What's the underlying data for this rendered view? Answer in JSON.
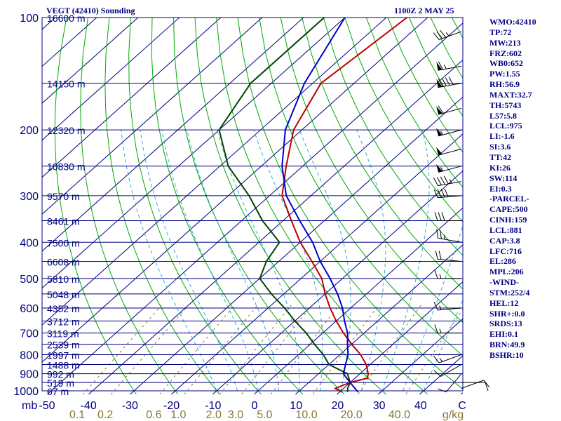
{
  "header": {
    "left_title": "VEGT (42410) Sounding",
    "right_title": "1100Z  2 MAY 25"
  },
  "colors": {
    "isobar": "#000080",
    "isotherm": "#000080",
    "dry_adiabat": "#00aa00",
    "moist_adiabat": "#33aadd",
    "mixing_ratio": "#887733",
    "temperature": "#bb0000",
    "dewpoint": "#004400",
    "parcel": "#0000cc",
    "wind": "#000000",
    "mixing_label": "#887733",
    "index_text": "#000080"
  },
  "chart_data": {
    "type": "skew-t",
    "xlabel_unit_left": "mb",
    "xlabel_unit_right": "g/kg",
    "temperature_ticks": [
      "-50",
      "-40",
      "-30",
      "-20",
      "-10",
      "0",
      "10",
      "20",
      "30",
      "40",
      "C"
    ],
    "pressure_levels": [
      {
        "p": 100,
        "label": "100",
        "height": "16600 m"
      },
      {
        "p": 150,
        "label": "",
        "height": "14150 m"
      },
      {
        "p": 200,
        "label": "200",
        "height": "12320 m"
      },
      {
        "p": 250,
        "label": "",
        "height": "10830 m"
      },
      {
        "p": 300,
        "label": "300",
        "height": "9570 m"
      },
      {
        "p": 350,
        "label": "",
        "height": "8461 m"
      },
      {
        "p": 400,
        "label": "400",
        "height": "7500 m"
      },
      {
        "p": 450,
        "label": "",
        "height": "6608 m"
      },
      {
        "p": 500,
        "label": "500",
        "height": "5810 m"
      },
      {
        "p": 550,
        "label": "",
        "height": "5048 m"
      },
      {
        "p": 600,
        "label": "600",
        "height": "4352 m"
      },
      {
        "p": 650,
        "label": "",
        "height": "3712 m"
      },
      {
        "p": 700,
        "label": "700",
        "height": "3119 m"
      },
      {
        "p": 750,
        "label": "",
        "height": "2539 m"
      },
      {
        "p": 800,
        "label": "800",
        "height": "1997 m"
      },
      {
        "p": 850,
        "label": "",
        "height": "1488 m"
      },
      {
        "p": 900,
        "label": "900",
        "height": "992 m"
      },
      {
        "p": 950,
        "label": "",
        "height": "519 m"
      },
      {
        "p": 1000,
        "label": "1000",
        "height": "67 m"
      }
    ],
    "mixing_ratio_labels": [
      "0.1",
      "0.2",
      "0.6",
      "1.0",
      "2.0",
      "3.0",
      "5.0",
      "10.0",
      "20.0",
      "40.0"
    ],
    "mixing_ratio_values": [
      0.1,
      0.2,
      0.6,
      1.0,
      2.0,
      3.0,
      5.0,
      10.0,
      20.0,
      40.0
    ],
    "series": [
      {
        "points": [
          [
            100,
            -65
          ],
          [
            150,
            -68
          ],
          [
            200,
            -62
          ],
          [
            250,
            -54
          ],
          [
            300,
            -47
          ],
          [
            350,
            -38
          ],
          [
            400,
            -30
          ],
          [
            450,
            -22
          ],
          [
            500,
            -15
          ],
          [
            550,
            -10
          ],
          [
            600,
            -5
          ],
          [
            650,
            0
          ],
          [
            700,
            5
          ],
          [
            750,
            10
          ],
          [
            800,
            15
          ],
          [
            850,
            19
          ],
          [
            900,
            22
          ],
          [
            925,
            23
          ],
          [
            950,
            20
          ],
          [
            985,
            18
          ],
          [
            1008,
            20.5
          ]
        ]
      },
      {
        "points": [
          [
            100,
            -85
          ],
          [
            150,
            -85
          ],
          [
            200,
            -80
          ],
          [
            250,
            -68
          ],
          [
            300,
            -55
          ],
          [
            350,
            -45
          ],
          [
            400,
            -35
          ],
          [
            450,
            -33
          ],
          [
            500,
            -30
          ],
          [
            550,
            -23
          ],
          [
            600,
            -16
          ],
          [
            650,
            -10
          ],
          [
            700,
            -4
          ],
          [
            750,
            1
          ],
          [
            800,
            6
          ],
          [
            850,
            10
          ],
          [
            900,
            17
          ],
          [
            950,
            20
          ],
          [
            985,
            21
          ],
          [
            1008,
            22
          ]
        ]
      },
      {
        "points": [
          [
            100,
            -80
          ],
          [
            150,
            -72
          ],
          [
            200,
            -64
          ],
          [
            250,
            -55
          ],
          [
            300,
            -46
          ],
          [
            350,
            -36
          ],
          [
            400,
            -27
          ],
          [
            450,
            -20
          ],
          [
            500,
            -13
          ],
          [
            550,
            -7
          ],
          [
            600,
            -2
          ],
          [
            650,
            2
          ],
          [
            700,
            6
          ],
          [
            750,
            9
          ],
          [
            800,
            12
          ],
          [
            850,
            14
          ],
          [
            900,
            16
          ],
          [
            950,
            20
          ],
          [
            1008,
            24.5
          ]
        ]
      }
    ],
    "wind_barbs": [
      {
        "p": 109,
        "dir": 250,
        "spd": 35
      },
      {
        "p": 135,
        "dir": 260,
        "spd": 65
      },
      {
        "p": 150,
        "dir": 260,
        "spd": 90
      },
      {
        "p": 175,
        "dir": 255,
        "spd": 60
      },
      {
        "p": 200,
        "dir": 255,
        "spd": 55
      },
      {
        "p": 225,
        "dir": 255,
        "spd": 50
      },
      {
        "p": 250,
        "dir": 255,
        "spd": 55
      },
      {
        "p": 275,
        "dir": 260,
        "spd": 45
      },
      {
        "p": 300,
        "dir": 265,
        "spd": 40
      },
      {
        "p": 350,
        "dir": 270,
        "spd": 30
      },
      {
        "p": 400,
        "dir": 280,
        "spd": 25
      },
      {
        "p": 450,
        "dir": 275,
        "spd": 20
      },
      {
        "p": 500,
        "dir": 270,
        "spd": 15
      },
      {
        "p": 600,
        "dir": 265,
        "spd": 15
      },
      {
        "p": 700,
        "dir": 270,
        "spd": 15
      },
      {
        "p": 800,
        "dir": 250,
        "spd": 15
      },
      {
        "p": 850,
        "dir": 240,
        "spd": 10
      },
      {
        "p": 900,
        "dir": 220,
        "spd": 10
      },
      {
        "p": 950,
        "dir": 90,
        "spd": 10
      },
      {
        "p": 985,
        "dir": 70,
        "spd": 10
      }
    ]
  },
  "indices": [
    "WMO:42410",
    "TP:72",
    "MW:213",
    "FRZ:602",
    "WB0:652",
    "PW:1.55",
    "RH:56.9",
    "MAXT:32.7",
    "TH:5743",
    "L57:5.8",
    "LCL:975",
    "LI:-1.6",
    "SI:3.6",
    "TT:42",
    "KI:26",
    "SW:114",
    "EI:0.3",
    "-PARCEL-",
    "CAPE:500",
    "CINH:159",
    "LCL:881",
    "CAP:3.8",
    "LFC:716",
    "EL:286",
    "MPL:206",
    "-WIND-",
    "STM:252/4",
    "HEL:12",
    "SHR+:0.0",
    "SRDS:13",
    "EHI:0.1",
    "BRN:49.9",
    "BSHR:10"
  ]
}
